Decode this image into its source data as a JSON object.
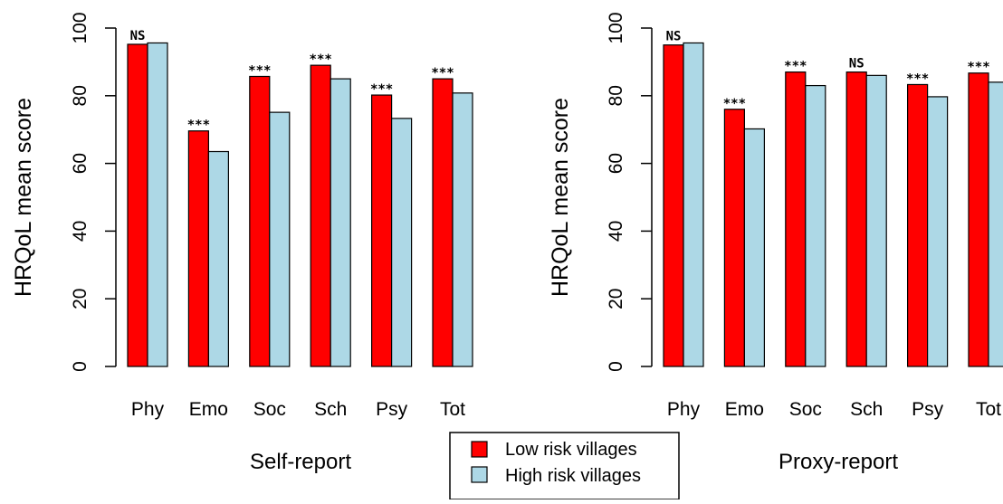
{
  "colors": {
    "low_risk": "#ff0000",
    "high_risk": "#add8e6",
    "axis": "#000000"
  },
  "legend": {
    "entries": [
      {
        "label": "Low risk villages",
        "color": "#ff0000"
      },
      {
        "label": "High risk villages",
        "color": "#add8e6"
      }
    ],
    "position": "bottom-center"
  },
  "chart_data": [
    {
      "type": "bar",
      "title": "",
      "xlabel": "Self-report",
      "ylabel": "HRQoL mean score",
      "ylim": [
        0,
        100
      ],
      "yticks": [
        "0",
        "20",
        "40",
        "60",
        "80",
        "100"
      ],
      "categories": [
        "Phy",
        "Emo",
        "Soc",
        "Sch",
        "Psy",
        "Tot"
      ],
      "series": [
        {
          "name": "Low risk villages",
          "values": [
            95.2,
            69.6,
            85.7,
            89.0,
            80.2,
            85.0
          ]
        },
        {
          "name": "High risk villages",
          "values": [
            95.6,
            63.5,
            75.1,
            85.0,
            73.3,
            80.8
          ]
        }
      ],
      "significance": [
        "NS",
        "***",
        "***",
        "***",
        "***",
        "***"
      ],
      "grid": false
    },
    {
      "type": "bar",
      "title": "",
      "xlabel": "Proxy-report",
      "ylabel": "HRQoL mean score",
      "ylim": [
        0,
        100
      ],
      "yticks": [
        "0",
        "20",
        "40",
        "60",
        "80",
        "100"
      ],
      "categories": [
        "Phy",
        "Emo",
        "Soc",
        "Sch",
        "Psy",
        "Tot"
      ],
      "series": [
        {
          "name": "Low risk villages",
          "values": [
            95.0,
            76.0,
            87.0,
            87.0,
            83.3,
            86.7
          ]
        },
        {
          "name": "High risk villages",
          "values": [
            95.6,
            70.2,
            83.0,
            86.0,
            79.7,
            84.0
          ]
        }
      ],
      "significance": [
        "NS",
        "***",
        "***",
        "NS",
        "***",
        "***"
      ],
      "grid": false
    }
  ]
}
